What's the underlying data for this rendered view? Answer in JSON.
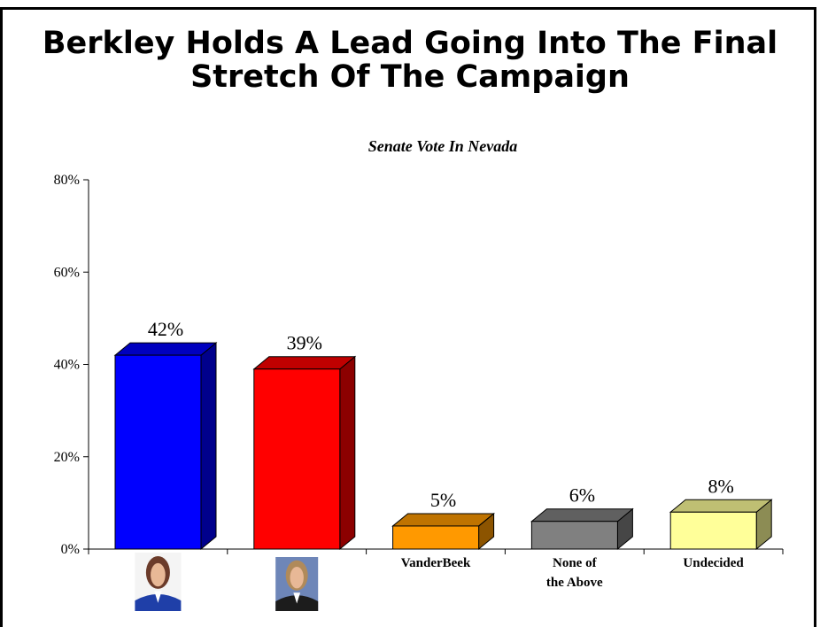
{
  "headline": {
    "line1": "Berkley Holds A Lead Going Into The Final",
    "line2": "Stretch Of The Campaign"
  },
  "chart_data": {
    "type": "bar",
    "title": "Senate Vote In Nevada",
    "categories": [
      "",
      "",
      "VanderBeek",
      "None of the Above",
      "Undecided"
    ],
    "category_lines": [
      [],
      [],
      [
        "VanderBeek"
      ],
      [
        "None of",
        "the Above"
      ],
      [
        "Undecided"
      ]
    ],
    "values": [
      42,
      39,
      5,
      6,
      8
    ],
    "value_labels": [
      "42%",
      "39%",
      "5%",
      "6%",
      "8%"
    ],
    "colors": [
      "#0000ff",
      "#ff0000",
      "#ff9900",
      "#808080",
      "#ffff99"
    ],
    "ylim": [
      0,
      80
    ],
    "yticks": [
      "0%",
      "20%",
      "40%",
      "60%",
      "80%"
    ],
    "ytick_values": [
      0,
      20,
      40,
      60,
      80
    ],
    "xlabel": "",
    "ylabel": "",
    "grid": false,
    "legend": "none",
    "three_d": true,
    "category_images": [
      "candidate-photo-berkley",
      "candidate-photo-heller",
      "",
      "",
      ""
    ]
  }
}
